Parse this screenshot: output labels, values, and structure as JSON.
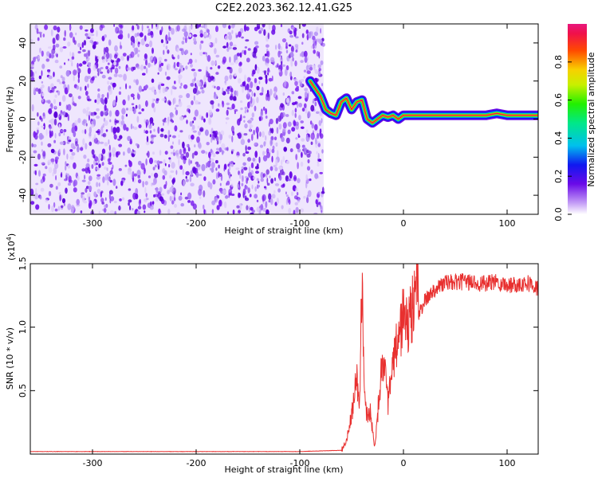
{
  "figure": {
    "title": "C2E2.2023.362.12.41.G25"
  },
  "colors": {
    "axes": "#000000",
    "snr_line": "#e8302f",
    "background": "#ffffff"
  },
  "chart_data": [
    {
      "type": "heatmap",
      "name": "spectrogram",
      "title": "C2E2.2023.362.12.41.G25",
      "xlabel": "Height of straight line (km)",
      "ylabel": "Frequency (Hz)",
      "xlim": [
        -360,
        130
      ],
      "ylim": [
        -50,
        50
      ],
      "xticks": [
        -300,
        -200,
        -100,
        0,
        100
      ],
      "yticks": [
        -40,
        -20,
        0,
        20,
        40
      ],
      "colormap": "rainbow",
      "noise_region_x": [
        -360,
        -77
      ],
      "signal_track": {
        "x": [
          -90,
          -80,
          -75,
          -70,
          -65,
          -60,
          -55,
          -50,
          -45,
          -40,
          -35,
          -30,
          -25,
          -20,
          -15,
          -10,
          -5,
          0,
          20,
          50,
          80,
          90,
          100,
          130
        ],
        "y": [
          20,
          12,
          5,
          3,
          2,
          9,
          11,
          5,
          9,
          10,
          0,
          -2,
          0,
          2,
          1,
          2,
          0,
          2,
          2,
          2,
          2,
          3,
          2,
          2
        ]
      },
      "colorbar": {
        "label": "Normalized spectral amplitude",
        "range": [
          0.0,
          1.0
        ],
        "ticks": [
          "0.0",
          "0.2",
          "0.4",
          "0.6",
          "0.8"
        ]
      }
    },
    {
      "type": "line",
      "name": "snr",
      "xlabel": "Height of straight line (km)",
      "ylabel": "SNR (10 * v/v)",
      "multiplier": "(x10",
      "multiplier_exp": "4",
      "multiplier_close": ")",
      "xlim": [
        -360,
        130
      ],
      "ylim": [
        0,
        1.5
      ],
      "xticks": [
        -300,
        -200,
        -100,
        0,
        100
      ],
      "yticks": [
        "0.5",
        "1.0",
        "1.5"
      ],
      "series": [
        {
          "x": [
            -360,
            -300,
            -200,
            -100,
            -60,
            -55,
            -50,
            -45,
            -42,
            -40,
            -38,
            -35,
            -32,
            -30,
            -28,
            -25,
            -20,
            -15,
            -10,
            -5,
            0,
            5,
            10,
            13,
            15,
            20,
            25,
            30,
            40,
            50,
            60,
            70,
            80,
            90,
            100,
            110,
            120,
            130
          ],
          "y": [
            0.02,
            0.02,
            0.02,
            0.02,
            0.03,
            0.1,
            0.3,
            0.6,
            0.4,
            1.45,
            0.5,
            0.3,
            0.35,
            0.2,
            0.05,
            0.3,
            0.8,
            0.4,
            0.7,
            0.9,
            1.1,
            1.0,
            1.2,
            1.55,
            1.1,
            1.2,
            1.25,
            1.3,
            1.35,
            1.35,
            1.36,
            1.35,
            1.34,
            1.36,
            1.33,
            1.34,
            1.35,
            1.3
          ]
        }
      ]
    }
  ]
}
